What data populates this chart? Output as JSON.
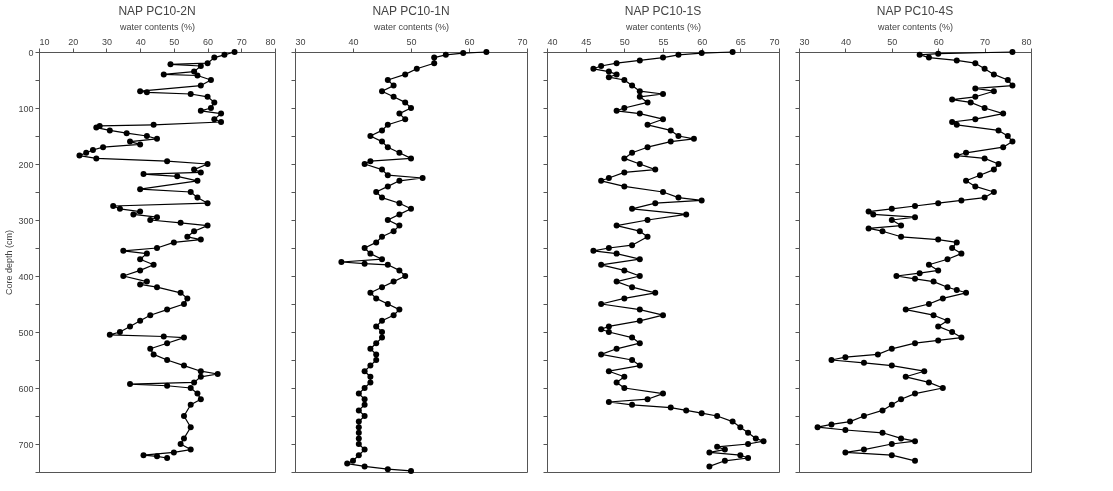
{
  "chart_data": [
    {
      "type": "line",
      "title": "NAP PC10-2N",
      "xlabel": "water contents (%)",
      "ylabel": "Core depth (cm)",
      "marker": "circle",
      "line_style": "solid",
      "grid": false,
      "color": "#000000",
      "xlim": [
        10,
        80
      ],
      "xticks": [
        10,
        20,
        30,
        40,
        50,
        60,
        70,
        80
      ],
      "ylim": [
        750,
        0
      ],
      "yticks": [
        0,
        {
          "value": 50,
          "label": null
        },
        100,
        {
          "value": 150,
          "label": null
        },
        200,
        {
          "value": 250,
          "label": null
        },
        300,
        {
          "value": 350,
          "label": null
        },
        400,
        {
          "value": 450,
          "label": null
        },
        500,
        {
          "value": 550,
          "label": null
        },
        600,
        {
          "value": 650,
          "label": null
        },
        700,
        {
          "value": 750,
          "label": null
        }
      ],
      "orientation": "horizontal",
      "values": [
        68,
        65,
        62,
        60,
        49,
        58,
        56,
        47,
        57,
        61,
        58,
        40,
        42,
        55,
        60,
        62,
        61,
        58,
        64,
        62,
        64,
        44,
        28,
        27,
        31,
        36,
        42,
        45,
        37,
        40,
        29,
        26,
        24,
        22,
        27,
        48,
        60,
        56,
        58,
        41,
        51,
        57,
        40,
        55,
        57,
        60,
        32,
        34,
        40,
        38,
        45,
        43,
        52,
        60,
        56,
        54,
        58,
        50,
        45,
        35,
        42,
        40,
        44,
        40,
        35,
        42,
        40,
        45,
        52,
        54,
        53,
        48,
        43,
        40,
        37,
        34,
        31,
        47,
        53,
        48,
        43,
        44,
        48,
        53,
        58,
        63,
        58,
        56,
        37,
        48,
        55,
        57,
        58,
        55,
        53,
        55,
        53,
        52,
        55,
        50,
        41,
        45,
        48
      ],
      "x": [
        0,
        5,
        10,
        20,
        22,
        25,
        35,
        40,
        42,
        50,
        60,
        70,
        72,
        75,
        80,
        90,
        100,
        105,
        110,
        120,
        125,
        130,
        132,
        135,
        140,
        145,
        150,
        155,
        160,
        165,
        170,
        175,
        180,
        185,
        190,
        195,
        200,
        210,
        215,
        218,
        222,
        230,
        245,
        250,
        260,
        270,
        275,
        280,
        285,
        290,
        295,
        300,
        305,
        310,
        320,
        330,
        335,
        340,
        350,
        355,
        360,
        370,
        380,
        390,
        400,
        410,
        415,
        420,
        430,
        440,
        450,
        460,
        470,
        480,
        490,
        500,
        505,
        508,
        510,
        520,
        530,
        540,
        550,
        560,
        570,
        575,
        580,
        590,
        593,
        596,
        600,
        610,
        620,
        630,
        650,
        670,
        690,
        700,
        710,
        715,
        720,
        722,
        725
      ]
    },
    {
      "type": "line",
      "title": "NAP PC10-1N",
      "xlabel": "water contents (%)",
      "marker": "circle",
      "line_style": "solid",
      "grid": false,
      "color": "#000000",
      "tick_labels": "x",
      "xlim": [
        30,
        70
      ],
      "xticks": [
        30,
        40,
        50,
        60,
        70
      ],
      "ylim": [
        750,
        0
      ],
      "yticks": [
        0,
        {
          "value": 50,
          "label": null
        },
        100,
        {
          "value": 150,
          "label": null
        },
        200,
        {
          "value": 250,
          "label": null
        },
        300,
        {
          "value": 350,
          "label": null
        },
        400,
        {
          "value": 450,
          "label": null
        },
        500,
        {
          "value": 550,
          "label": null
        },
        600,
        {
          "value": 650,
          "label": null
        },
        700,
        {
          "value": 750,
          "label": null
        }
      ],
      "orientation": "horizontal",
      "values": [
        63,
        59,
        56,
        54,
        54,
        51,
        49,
        46,
        47,
        45,
        47,
        49,
        50,
        48,
        49,
        46,
        45,
        43,
        45,
        46,
        48,
        50,
        43,
        42,
        45,
        46,
        52,
        48,
        46,
        44,
        45,
        48,
        50,
        48,
        46,
        48,
        47,
        45,
        44,
        42,
        43,
        45,
        38,
        42,
        46,
        48,
        49,
        47,
        45,
        43,
        44,
        46,
        48,
        47,
        45,
        44,
        45,
        45,
        44,
        43,
        44,
        44,
        43,
        42,
        43,
        43,
        42,
        41,
        42,
        42,
        41,
        42,
        41,
        41,
        41,
        41,
        41,
        42,
        41,
        40,
        39,
        42,
        46,
        50
      ],
      "x": [
        0,
        2,
        5,
        10,
        20,
        30,
        40,
        50,
        60,
        70,
        80,
        90,
        100,
        110,
        120,
        130,
        140,
        150,
        160,
        170,
        180,
        190,
        195,
        200,
        210,
        220,
        225,
        230,
        240,
        250,
        260,
        270,
        280,
        290,
        300,
        310,
        320,
        330,
        340,
        350,
        360,
        370,
        375,
        378,
        380,
        390,
        400,
        410,
        420,
        430,
        440,
        450,
        460,
        470,
        480,
        490,
        500,
        510,
        520,
        530,
        540,
        550,
        560,
        570,
        580,
        590,
        600,
        610,
        620,
        630,
        640,
        650,
        660,
        670,
        680,
        690,
        700,
        710,
        720,
        730,
        735,
        740,
        745,
        748
      ]
    },
    {
      "type": "line",
      "title": "NAP PC10-1S",
      "xlabel": "water contents (%)",
      "marker": "circle",
      "line_style": "solid",
      "grid": false,
      "color": "#000000",
      "tick_labels": "x",
      "xlim": [
        40,
        70
      ],
      "xticks": [
        40,
        45,
        50,
        55,
        60,
        65,
        70
      ],
      "ylim": [
        750,
        0
      ],
      "yticks": [
        0,
        {
          "value": 50,
          "label": null
        },
        100,
        {
          "value": 150,
          "label": null
        },
        200,
        {
          "value": 250,
          "label": null
        },
        300,
        {
          "value": 350,
          "label": null
        },
        400,
        {
          "value": 450,
          "label": null
        },
        500,
        {
          "value": 550,
          "label": null
        },
        600,
        {
          "value": 650,
          "label": null
        },
        700,
        {
          "value": 750,
          "label": null
        }
      ],
      "orientation": "horizontal",
      "values": [
        64,
        60,
        57,
        55,
        52,
        49,
        47,
        46,
        48,
        49,
        48,
        50,
        51,
        52,
        55,
        52,
        53,
        50,
        49,
        52,
        55,
        53,
        56,
        57,
        59,
        56,
        53,
        51,
        50,
        52,
        54,
        50,
        48,
        47,
        50,
        55,
        57,
        60,
        54,
        51,
        58,
        53,
        49,
        52,
        53,
        51,
        48,
        46,
        49,
        52,
        47,
        50,
        52,
        49,
        51,
        54,
        50,
        47,
        52,
        55,
        52,
        48,
        47,
        48,
        51,
        52,
        49,
        47,
        51,
        52,
        48,
        50,
        49,
        50,
        55,
        53,
        48,
        51,
        56,
        58,
        60,
        62,
        64,
        65,
        66,
        67,
        68,
        66,
        62,
        63,
        61,
        65,
        66,
        63,
        61
      ],
      "x": [
        0,
        2,
        5,
        10,
        15,
        20,
        25,
        30,
        35,
        40,
        45,
        50,
        60,
        70,
        75,
        80,
        90,
        100,
        105,
        110,
        120,
        130,
        140,
        150,
        155,
        160,
        170,
        180,
        190,
        200,
        210,
        215,
        225,
        230,
        240,
        250,
        260,
        265,
        270,
        280,
        290,
        300,
        310,
        320,
        330,
        345,
        350,
        355,
        360,
        370,
        380,
        390,
        400,
        410,
        420,
        430,
        440,
        450,
        460,
        470,
        480,
        490,
        495,
        500,
        510,
        520,
        530,
        540,
        550,
        560,
        570,
        580,
        590,
        600,
        610,
        620,
        625,
        630,
        635,
        640,
        645,
        650,
        660,
        670,
        680,
        690,
        695,
        700,
        705,
        710,
        715,
        720,
        725,
        730,
        740
      ]
    },
    {
      "type": "line",
      "title": "NAP PC10-4S",
      "xlabel": "water contents (%)",
      "marker": "circle",
      "line_style": "solid",
      "grid": false,
      "color": "#000000",
      "tick_labels": "x",
      "xlim": [
        30,
        80
      ],
      "xticks": [
        30,
        40,
        50,
        60,
        70,
        80
      ],
      "ylim": [
        750,
        0
      ],
      "yticks": [
        0,
        {
          "value": 50,
          "label": null
        },
        100,
        {
          "value": 150,
          "label": null
        },
        200,
        {
          "value": 250,
          "label": null
        },
        300,
        {
          "value": 350,
          "label": null
        },
        400,
        {
          "value": 450,
          "label": null
        },
        500,
        {
          "value": 550,
          "label": null
        },
        600,
        {
          "value": 650,
          "label": null
        },
        700,
        {
          "value": 750,
          "label": null
        }
      ],
      "orientation": "horizontal",
      "values": [
        76,
        60,
        56,
        58,
        64,
        68,
        70,
        72,
        75,
        76,
        68,
        72,
        68,
        63,
        67,
        70,
        74,
        68,
        63,
        64,
        73,
        75,
        76,
        74,
        66,
        64,
        70,
        73,
        72,
        69,
        66,
        68,
        72,
        70,
        65,
        60,
        55,
        50,
        45,
        46,
        55,
        50,
        52,
        45,
        48,
        52,
        60,
        64,
        63,
        65,
        62,
        58,
        60,
        56,
        51,
        55,
        59,
        62,
        64,
        66,
        61,
        58,
        53,
        59,
        62,
        60,
        63,
        65,
        60,
        55,
        50,
        47,
        40,
        37,
        44,
        50,
        57,
        53,
        58,
        61,
        55,
        52,
        50,
        48,
        44,
        41,
        37,
        34,
        40,
        48,
        52,
        55,
        50,
        44,
        40,
        50,
        55
      ],
      "x": [
        0,
        3,
        5,
        10,
        15,
        20,
        30,
        40,
        50,
        60,
        65,
        70,
        80,
        85,
        90,
        100,
        110,
        120,
        125,
        130,
        140,
        150,
        160,
        170,
        180,
        185,
        190,
        200,
        210,
        220,
        230,
        240,
        250,
        260,
        265,
        270,
        275,
        280,
        285,
        290,
        295,
        300,
        310,
        315,
        320,
        330,
        335,
        340,
        350,
        360,
        370,
        380,
        390,
        395,
        400,
        405,
        410,
        420,
        425,
        430,
        440,
        450,
        460,
        470,
        480,
        490,
        500,
        510,
        515,
        520,
        530,
        540,
        545,
        550,
        555,
        560,
        570,
        580,
        590,
        600,
        610,
        620,
        630,
        640,
        650,
        660,
        665,
        670,
        675,
        680,
        690,
        695,
        700,
        710,
        715,
        720,
        730
      ]
    }
  ]
}
